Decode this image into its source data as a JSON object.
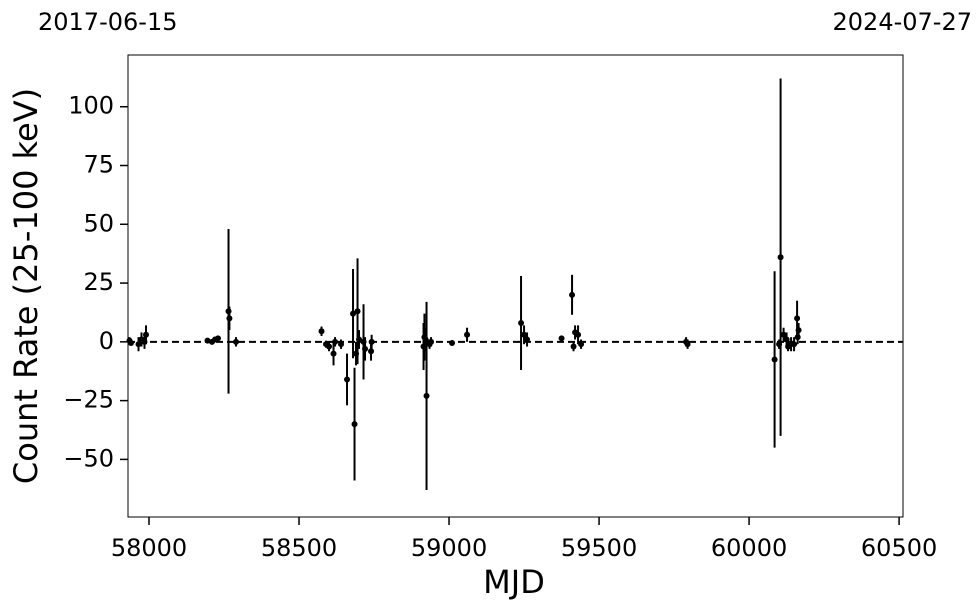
{
  "chart_data": {
    "type": "errorbar",
    "annotations": [
      "2017-06-15",
      "2024-07-27"
    ],
    "x_label": "MJD",
    "y_label": "Count Rate (25-100 keV)",
    "color": "#000000",
    "reference_line": 0,
    "x": [
      57935,
      57940,
      57965,
      57975,
      57985,
      57990,
      58195,
      58210,
      58220,
      58230,
      58265,
      58268,
      58290,
      58575,
      58590,
      58600,
      58615,
      58620,
      58640,
      58660,
      58680,
      58685,
      58690,
      58695,
      58700,
      58715,
      58720,
      58740,
      58742,
      58915,
      58918,
      58922,
      58925,
      58935,
      58940,
      59010,
      59060,
      59240,
      59250,
      59260,
      59375,
      59410,
      59415,
      59420,
      59430,
      59440,
      59790,
      59795,
      60085,
      60100,
      60105,
      60115,
      60125,
      60130,
      60140,
      60150,
      60160,
      60165,
      60162
    ],
    "values": [
      0.5,
      -0.5,
      -1,
      1,
      0,
      3,
      0.5,
      0,
      1,
      1.5,
      13,
      10,
      0,
      4.5,
      -1,
      -2,
      -5,
      0,
      -1,
      -16,
      12,
      -35,
      -5,
      13,
      1,
      0,
      -3,
      -4,
      0,
      -2,
      2,
      1,
      -23,
      -1,
      0,
      -0.5,
      3,
      8,
      3,
      1,
      1.5,
      20,
      -2,
      4,
      3,
      -1,
      0,
      -1,
      -7.5,
      -1,
      36,
      3,
      1,
      -2,
      -1,
      -1,
      10,
      5,
      2
    ],
    "errors": [
      1.5,
      1,
      3,
      3,
      3,
      4,
      1,
      1,
      1,
      1,
      35,
      5,
      2,
      2,
      1.5,
      2,
      5,
      2,
      2,
      11,
      19,
      24,
      5,
      22.5,
      4,
      16,
      5,
      4,
      3,
      10,
      10,
      5,
      40,
      2,
      2,
      1,
      3,
      20,
      4,
      3,
      1,
      8.5,
      2,
      3,
      4,
      2,
      2,
      2,
      37.5,
      2,
      76,
      3,
      3,
      2,
      3,
      3,
      7.5,
      3,
      3
    ],
    "xlim": [
      57930,
      60513
    ],
    "ylim": [
      -74.5,
      122
    ],
    "xticks": [
      58000,
      58500,
      59000,
      59500,
      60000,
      60500
    ],
    "yticks": [
      {
        "value": -50,
        "label": "−50"
      },
      {
        "value": -25,
        "label": "−25"
      },
      0,
      25,
      50,
      75,
      100
    ]
  }
}
